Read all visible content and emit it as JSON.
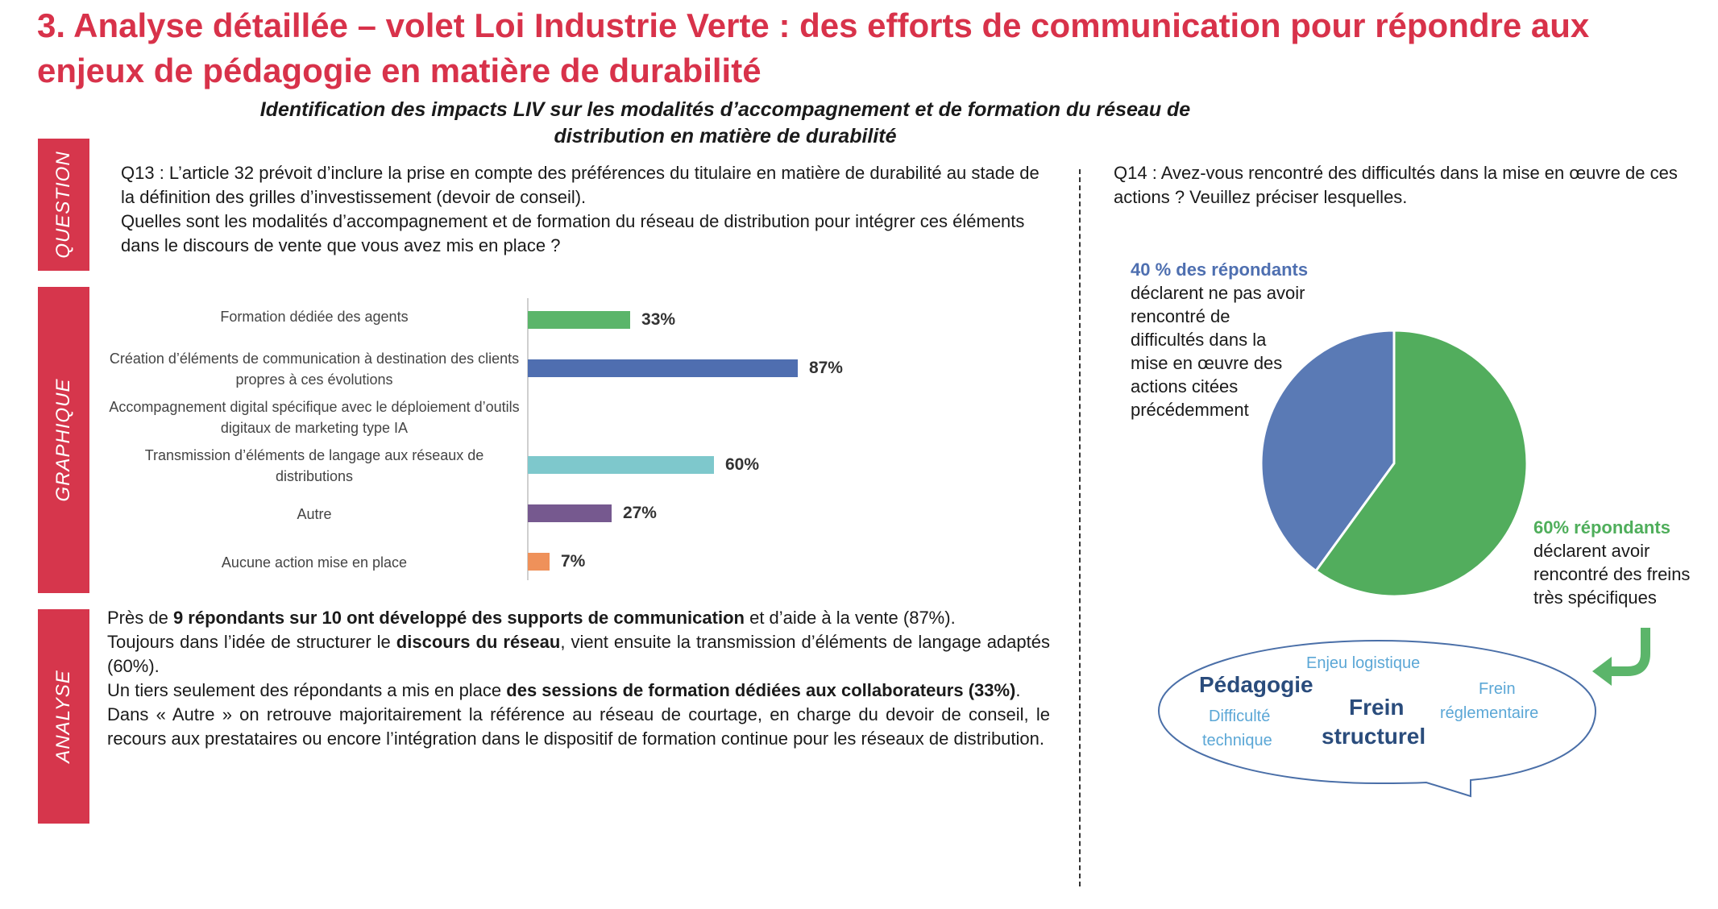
{
  "title": "3. Analyse détaillée – volet Loi Industrie Verte : des efforts de communication pour répondre aux enjeux de pédagogie en matière de durabilité",
  "subtitle": "Identification des impacts LIV sur les modalités d’accompagnement et de formation du réseau de distribution en matière de durabilité",
  "sidebar": {
    "question": "QUESTION",
    "graphique": "GRAPHIQUE",
    "analyse": "ANALYSE"
  },
  "q13": {
    "line1": "Q13 : L’article 32 prévoit d’inclure la prise en compte des préférences du titulaire en matière de durabilité au stade de la définition des grilles d’investissement (devoir de conseil).",
    "line2": "Quelles sont les modalités d’accompagnement et de formation du réseau de distribution pour intégrer ces éléments dans le discours de vente que vous avez mis en place ?"
  },
  "q14": {
    "text": "Q14 : Avez-vous rencontré des difficultés dans la mise en œuvre de ces actions ? Veuillez préciser lesquelles."
  },
  "chart_data": [
    {
      "type": "bar",
      "orientation": "horizontal",
      "categories": [
        "Formation dédiée des agents",
        "Création d’éléments de communication à destination des clients propres à ces évolutions",
        "Accompagnement digital spécifique avec le déploiement d’outils digitaux de marketing type IA",
        "Transmission d’éléments de langage aux réseaux de distributions",
        "Autre",
        "Aucune action mise en place"
      ],
      "values": [
        33,
        87,
        0,
        60,
        27,
        7
      ],
      "value_labels": [
        "33%",
        "87%",
        "",
        "60%",
        "27%",
        "7%"
      ],
      "colors": [
        "#5bb56a",
        "#4f6eb0",
        "#cccccc",
        "#7ec8cc",
        "#76598f",
        "#ef915a"
      ],
      "xlim": [
        0,
        100
      ],
      "title": "",
      "xlabel": "",
      "ylabel": ""
    },
    {
      "type": "pie",
      "categories": [
        "déclarent ne pas avoir rencontré de difficultés",
        "déclarent avoir rencontré des freins très spécifiques"
      ],
      "values": [
        40,
        60
      ],
      "colors": [
        "#5a7ab5",
        "#52ad5d"
      ],
      "title": ""
    }
  ],
  "pie_labels": {
    "left_head": "40 % des répondants",
    "left_body": [
      "déclarent ne pas avoir",
      "rencontré de",
      "difficultés dans la",
      "mise en œuvre des",
      "actions citées",
      "précédemment"
    ],
    "right_head": "60% répondants",
    "right_body": [
      "déclarent avoir",
      "rencontré des freins",
      "très spécifiques"
    ]
  },
  "word_cloud": {
    "words": [
      "Enjeu logistique",
      "Pédagogie",
      "Frein",
      "réglementaire",
      "Difficulté",
      "technique",
      "Frein",
      "structurel"
    ]
  },
  "analysis": {
    "p1_a": "Près de ",
    "p1_b": "9 répondants sur 10 ont développé des supports de communication",
    "p1_c": " et d’aide à la vente (87%).",
    "p2_a": "Toujours dans l’idée de structurer le ",
    "p2_b": "discours du réseau",
    "p2_c": ", vient ensuite la transmission d’éléments de langage adaptés (60%).",
    "p3_a": "Un tiers seulement des répondants a mis en place ",
    "p3_b": "des sessions de formation dédiées aux collaborateurs (33%)",
    "p3_c": ".",
    "p4": "Dans « Autre » on retrouve majoritairement la référence au réseau de courtage, en charge du devoir de conseil, le recours aux prestataires ou encore l’intégration dans le dispositif de formation continue pour les réseaux de distribution."
  },
  "colors": {
    "accent": "#d8324a",
    "sidebar": "#d6364c"
  }
}
